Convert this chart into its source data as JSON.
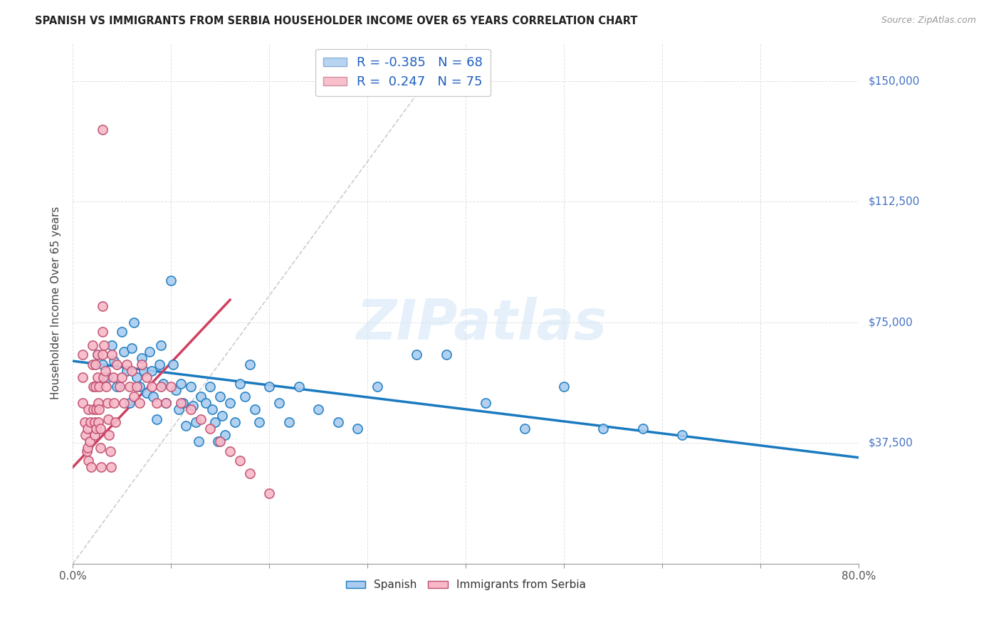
{
  "title": "SPANISH VS IMMIGRANTS FROM SERBIA HOUSEHOLDER INCOME OVER 65 YEARS CORRELATION CHART",
  "source": "Source: ZipAtlas.com",
  "ylabel": "Householder Income Over 65 years",
  "watermark": "ZIPatlas",
  "ytick_labels": [
    "$37,500",
    "$75,000",
    "$112,500",
    "$150,000"
  ],
  "ytick_values": [
    37500,
    75000,
    112500,
    150000
  ],
  "ymin": 0,
  "ymax": 162000,
  "xmin": 0.0,
  "xmax": 0.8,
  "legend_entries": [
    {
      "label_r": "R = -0.385",
      "label_n": "N = 68",
      "color": "#b8d4f0"
    },
    {
      "label_r": "R =  0.247",
      "label_n": "N = 75",
      "color": "#f8c0cc"
    }
  ],
  "legend_labels": [
    "Spanish",
    "Immigrants from Serbia"
  ],
  "spanish_color": "#aaccf0",
  "serbia_color": "#f8b8c8",
  "trend_spanish_color": "#1a7abf",
  "trend_serbia_color": "#d04060",
  "trend_diagonal_color": "#cccccc",
  "spanish_x": [
    0.025,
    0.03,
    0.035,
    0.04,
    0.042,
    0.045,
    0.05,
    0.052,
    0.055,
    0.058,
    0.06,
    0.062,
    0.065,
    0.068,
    0.07,
    0.072,
    0.075,
    0.078,
    0.08,
    0.082,
    0.085,
    0.088,
    0.09,
    0.092,
    0.095,
    0.1,
    0.102,
    0.105,
    0.108,
    0.11,
    0.112,
    0.115,
    0.12,
    0.122,
    0.125,
    0.128,
    0.13,
    0.135,
    0.14,
    0.142,
    0.145,
    0.148,
    0.15,
    0.152,
    0.155,
    0.16,
    0.165,
    0.17,
    0.175,
    0.18,
    0.185,
    0.19,
    0.2,
    0.21,
    0.22,
    0.23,
    0.25,
    0.27,
    0.29,
    0.31,
    0.35,
    0.38,
    0.42,
    0.46,
    0.5,
    0.54,
    0.58,
    0.62
  ],
  "spanish_y": [
    65000,
    62000,
    58000,
    68000,
    63000,
    55000,
    72000,
    66000,
    60000,
    50000,
    67000,
    75000,
    58000,
    55000,
    64000,
    60000,
    53000,
    66000,
    60000,
    52000,
    45000,
    62000,
    68000,
    56000,
    50000,
    88000,
    62000,
    54000,
    48000,
    56000,
    50000,
    43000,
    55000,
    49000,
    44000,
    38000,
    52000,
    50000,
    55000,
    48000,
    44000,
    38000,
    52000,
    46000,
    40000,
    50000,
    44000,
    56000,
    52000,
    62000,
    48000,
    44000,
    55000,
    50000,
    44000,
    55000,
    48000,
    44000,
    42000,
    55000,
    65000,
    65000,
    50000,
    42000,
    55000,
    42000,
    42000,
    40000
  ],
  "serbia_x": [
    0.01,
    0.01,
    0.01,
    0.012,
    0.013,
    0.014,
    0.015,
    0.015,
    0.016,
    0.016,
    0.017,
    0.018,
    0.019,
    0.02,
    0.02,
    0.021,
    0.021,
    0.022,
    0.022,
    0.023,
    0.023,
    0.024,
    0.024,
    0.025,
    0.025,
    0.026,
    0.026,
    0.027,
    0.027,
    0.028,
    0.028,
    0.029,
    0.03,
    0.03,
    0.031,
    0.032,
    0.033,
    0.034,
    0.035,
    0.036,
    0.037,
    0.038,
    0.039,
    0.04,
    0.041,
    0.042,
    0.043,
    0.045,
    0.048,
    0.05,
    0.052,
    0.055,
    0.058,
    0.06,
    0.062,
    0.065,
    0.068,
    0.07,
    0.075,
    0.08,
    0.085,
    0.09,
    0.095,
    0.1,
    0.11,
    0.12,
    0.13,
    0.14,
    0.15,
    0.16,
    0.17,
    0.18,
    0.2,
    0.03,
    0.03
  ],
  "serbia_y": [
    65000,
    58000,
    50000,
    44000,
    40000,
    35000,
    42000,
    36000,
    48000,
    32000,
    38000,
    44000,
    30000,
    68000,
    62000,
    55000,
    48000,
    44000,
    40000,
    62000,
    55000,
    48000,
    42000,
    65000,
    58000,
    50000,
    44000,
    55000,
    48000,
    42000,
    36000,
    30000,
    72000,
    65000,
    58000,
    68000,
    60000,
    55000,
    50000,
    45000,
    40000,
    35000,
    30000,
    65000,
    58000,
    50000,
    44000,
    62000,
    55000,
    58000,
    50000,
    62000,
    55000,
    60000,
    52000,
    55000,
    50000,
    62000,
    58000,
    55000,
    50000,
    55000,
    50000,
    55000,
    50000,
    48000,
    45000,
    42000,
    38000,
    35000,
    32000,
    28000,
    22000,
    135000,
    80000
  ]
}
